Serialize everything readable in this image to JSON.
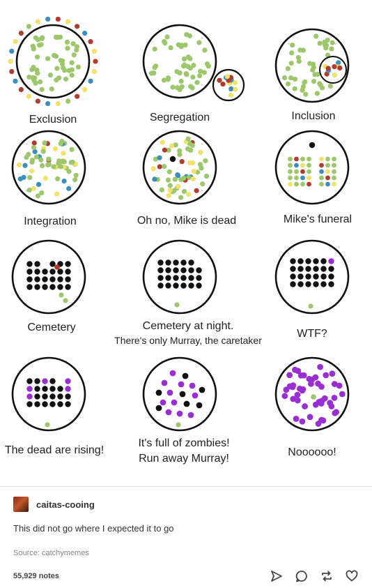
{
  "colors": {
    "green": "#9cc76b",
    "yellow": "#f1e26a",
    "red": "#b23a2e",
    "blue": "#3b8fbe",
    "black": "#111111",
    "purple": "#9a2fd1"
  },
  "panels": [
    {
      "caption": [
        "Exclusion"
      ]
    },
    {
      "caption": [
        "Segregation"
      ]
    },
    {
      "caption": [
        "Inclusion"
      ]
    },
    {
      "caption": [
        "Integration"
      ]
    },
    {
      "caption": [
        "Oh no, Mike is dead"
      ]
    },
    {
      "caption": [
        "Mike's funeral"
      ]
    },
    {
      "caption": [
        "Cemetery"
      ]
    },
    {
      "caption": [
        "Cemetery at night.",
        "There's only Murray, the caretaker"
      ]
    },
    {
      "caption": [
        "WTF?"
      ]
    },
    {
      "caption": [
        "The dead are rising!"
      ]
    },
    {
      "caption": [
        "It's full of zombies!",
        "Run away Murray!"
      ]
    },
    {
      "caption": [
        "Noooooo!"
      ]
    }
  ],
  "post": {
    "username": "caitas-cooing",
    "text": "This did not go where I expected it to go",
    "source_label": "Source:",
    "source_name": "catchymemes",
    "notes": "55,929 notes"
  },
  "actions": [
    "send-icon",
    "comment-icon",
    "reblog-icon",
    "heart-icon"
  ]
}
